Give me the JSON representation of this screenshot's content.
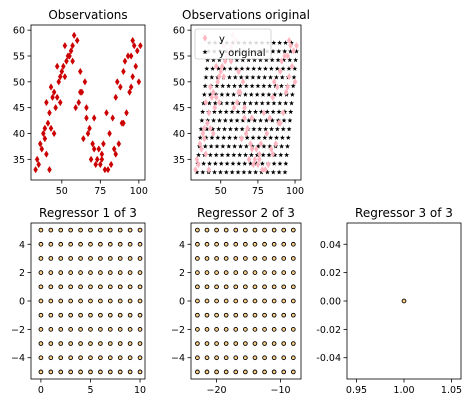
{
  "chart_data": [
    {
      "type": "scatter",
      "title": "Observations",
      "xlim": [
        30,
        104
      ],
      "ylim": [
        31,
        61
      ],
      "xticks": [
        50,
        75,
        100
      ],
      "yticks": [
        35,
        40,
        45,
        50,
        55,
        60
      ],
      "grid": false,
      "series": [
        {
          "marker": "diamond",
          "color": "#cc0000",
          "x": [
            33,
            37,
            39,
            40,
            43,
            47,
            52,
            58,
            62,
            66,
            70,
            75,
            80,
            85,
            90,
            95,
            99,
            34,
            38,
            42,
            45,
            49,
            55,
            60,
            65,
            71,
            76,
            82,
            87,
            92,
            96,
            101,
            36,
            41,
            44,
            48,
            53,
            57,
            63,
            68,
            73,
            78,
            84,
            89,
            94,
            98,
            35,
            39,
            46,
            50,
            56,
            61,
            67,
            72,
            77,
            83,
            88,
            93,
            97,
            40,
            43,
            47,
            51,
            54,
            59,
            64,
            69,
            74,
            79,
            86,
            91,
            96,
            100,
            42,
            45,
            49,
            52,
            57,
            62,
            66,
            71,
            76,
            81,
            85,
            90,
            95
          ],
          "y": [
            33,
            37,
            41,
            46,
            49,
            53,
            57,
            59,
            52,
            45,
            38,
            34,
            33,
            36,
            42,
            49,
            56,
            35,
            40,
            44,
            48,
            51,
            55,
            58,
            50,
            43,
            36,
            34,
            38,
            44,
            51,
            57,
            38,
            42,
            47,
            50,
            54,
            57,
            48,
            41,
            35,
            33,
            37,
            42,
            48,
            53,
            34,
            39,
            45,
            52,
            56,
            46,
            40,
            34,
            38,
            43,
            49,
            55,
            57,
            36,
            41,
            47,
            53,
            55,
            45,
            39,
            35,
            37,
            44,
            50,
            54,
            58,
            50,
            33,
            40,
            46,
            51,
            54,
            48,
            43,
            37,
            35,
            40,
            47,
            52,
            55
          ]
        }
      ]
    },
    {
      "type": "scatter",
      "title": "Observations original",
      "xlim": [
        30,
        104
      ],
      "ylim": [
        31,
        61
      ],
      "xticks": [
        50,
        75,
        100
      ],
      "yticks": [
        35,
        40,
        45,
        50,
        55,
        60
      ],
      "grid": false,
      "legend_position": "upper-left",
      "series": [
        {
          "name": "y",
          "marker": "diamond",
          "color": "#ffb6c1"
        },
        {
          "name": "y original",
          "marker": "star",
          "color": "#000000"
        }
      ]
    },
    {
      "type": "scatter",
      "title": "Regressor 1 of 3",
      "xlim": [
        -1,
        10.5
      ],
      "ylim": [
        -5.5,
        5.5
      ],
      "xticks": [
        0,
        5,
        10
      ],
      "yticks": [
        -4,
        -2,
        0,
        2,
        4
      ],
      "grid": false,
      "x": [
        0,
        1,
        2,
        3,
        4,
        5,
        6,
        7,
        8,
        9,
        10
      ],
      "y": [
        -5,
        -4,
        -3,
        -2,
        -1,
        0,
        1,
        2,
        3,
        4,
        5
      ]
    },
    {
      "type": "scatter",
      "title": "Regressor 2 of 3",
      "xlim": [
        -24,
        -6.8
      ],
      "ylim": [
        -5.5,
        5.5
      ],
      "xticks": [
        -20,
        -10
      ],
      "yticks": [
        -4,
        -2,
        0,
        2,
        4
      ],
      "grid": false,
      "x": [
        -23,
        -21.5,
        -20,
        -18.5,
        -17,
        -15.5,
        -14,
        -12.5,
        -11,
        -9.5,
        -8
      ],
      "y": [
        -5,
        -4,
        -3,
        -2,
        -1,
        0,
        1,
        2,
        3,
        4,
        5
      ]
    },
    {
      "type": "scatter",
      "title": "Regressor 3 of 3",
      "xlim": [
        0.94,
        1.06
      ],
      "ylim": [
        -0.055,
        0.055
      ],
      "xticks": [
        0.95,
        1.0,
        1.05
      ],
      "yticks": [
        -0.04,
        -0.02,
        0.0,
        0.02,
        0.04
      ],
      "grid": false,
      "x": [
        1.0
      ],
      "y": [
        0.0
      ]
    }
  ],
  "colors": {
    "obs_marker": "#cc0000",
    "obs_light": "#ffb6c1",
    "orig_marker": "#000000",
    "reg_fill": "#ffd28a",
    "reg_edge": "#000000"
  }
}
